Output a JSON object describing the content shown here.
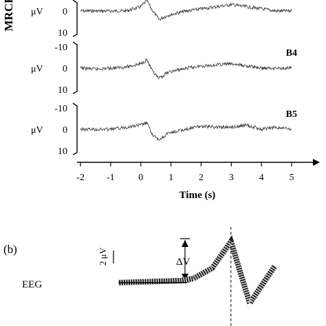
{
  "figure": {
    "y_axis_title": "MRCP",
    "x_axis_label": "Time (s)",
    "amplitude_unit": "μV",
    "panel_b_label": "(b)",
    "eeg_label": "EEG",
    "scale_bar_label": "2 μV",
    "delta_label": "ΔV"
  },
  "chart_data": [
    {
      "type": "line",
      "title": "",
      "xlabel": "Time (s)",
      "ylabel": "MRCP",
      "xlim": [
        -2,
        5.3
      ],
      "x_ticks": [
        -2,
        -1,
        0,
        1,
        2,
        3,
        4,
        5
      ],
      "x_tick_labels": [
        "-2",
        "-1",
        "0",
        "1",
        "2",
        "3",
        "4",
        "5"
      ],
      "y_unit": "μV",
      "y_axis_inverted": true,
      "panels": [
        {
          "name": "",
          "y_ticks": [
            "0",
            "10"
          ],
          "ylim": [
            -10,
            10
          ],
          "series": [
            {
              "x": [
                -2,
                -1.5,
                -1,
                -0.5,
                0,
                0.2,
                0.35,
                0.6,
                0.9,
                1.5,
                2.0,
                2.5,
                3.0,
                3.5,
                4.0,
                4.5,
                5.0
              ],
              "y": [
                0,
                0,
                0,
                0,
                -2,
                -5,
                -1,
                4,
                2,
                0,
                -1,
                -2,
                -3,
                -2,
                -1,
                0,
                0
              ]
            }
          ]
        },
        {
          "name": "B4",
          "y_ticks": [
            "-10",
            "0",
            "10"
          ],
          "ylim": [
            -10,
            10
          ],
          "series": [
            {
              "x": [
                -2,
                -1.5,
                -1,
                -0.5,
                0,
                0.2,
                0.4,
                0.6,
                0.9,
                1.5,
                2.0,
                2.5,
                3.0,
                3.5,
                4.0,
                4.5,
                5.0
              ],
              "y": [
                0,
                0.5,
                0,
                -0.5,
                -2,
                -4,
                2,
                5,
                2,
                0,
                -1,
                -1.5,
                -2,
                -1,
                0,
                0,
                0
              ]
            }
          ]
        },
        {
          "name": "B5",
          "y_ticks": [
            "-10",
            "0",
            "10"
          ],
          "ylim": [
            -10,
            10
          ],
          "series": [
            {
              "x": [
                -2,
                -1.5,
                -1,
                -0.5,
                0,
                0.2,
                0.4,
                0.6,
                0.9,
                1.5,
                2.0,
                2.5,
                3.0,
                3.5,
                4.0,
                4.5,
                5.0
              ],
              "y": [
                0,
                0,
                0,
                -1,
                -2,
                -3,
                3,
                5,
                2,
                0,
                -1.5,
                -1,
                -1,
                -2,
                0,
                -1,
                0
              ]
            }
          ]
        }
      ]
    },
    {
      "type": "line",
      "title": "",
      "series": [
        {
          "x": [
            0,
            1,
            1.2,
            1.5,
            1.8,
            2.1,
            2.5
          ],
          "y": [
            0,
            0.1,
            0.2,
            0.7,
            2.0,
            -1.0,
            0.8
          ]
        }
      ]
    }
  ]
}
